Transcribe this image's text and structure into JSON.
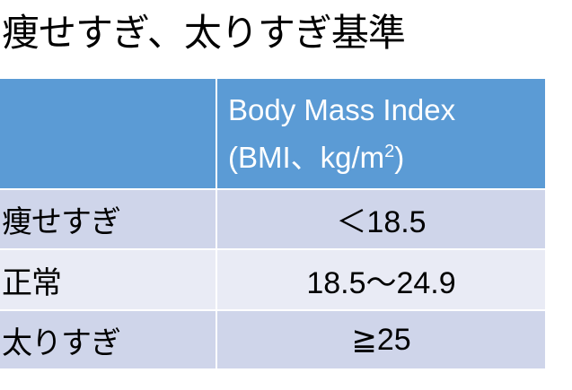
{
  "title": "痩せすぎ、太りすぎ基準",
  "table": {
    "header": {
      "col1": "",
      "col2_line1": "Body Mass Index",
      "col2_line2_pre": "(BMI、kg/m",
      "col2_sup": "2",
      "col2_line2_post": ")"
    },
    "rows": [
      {
        "category": "痩せすぎ",
        "bmi": "＜18.5"
      },
      {
        "category": "正常",
        "bmi": "18.5〜24.9"
      },
      {
        "category": "太りすぎ",
        "bmi": "≧25"
      }
    ]
  },
  "colors": {
    "header": "#5b9bd5",
    "row_dark": "#cfd5ea",
    "row_light": "#e9ebf5"
  }
}
